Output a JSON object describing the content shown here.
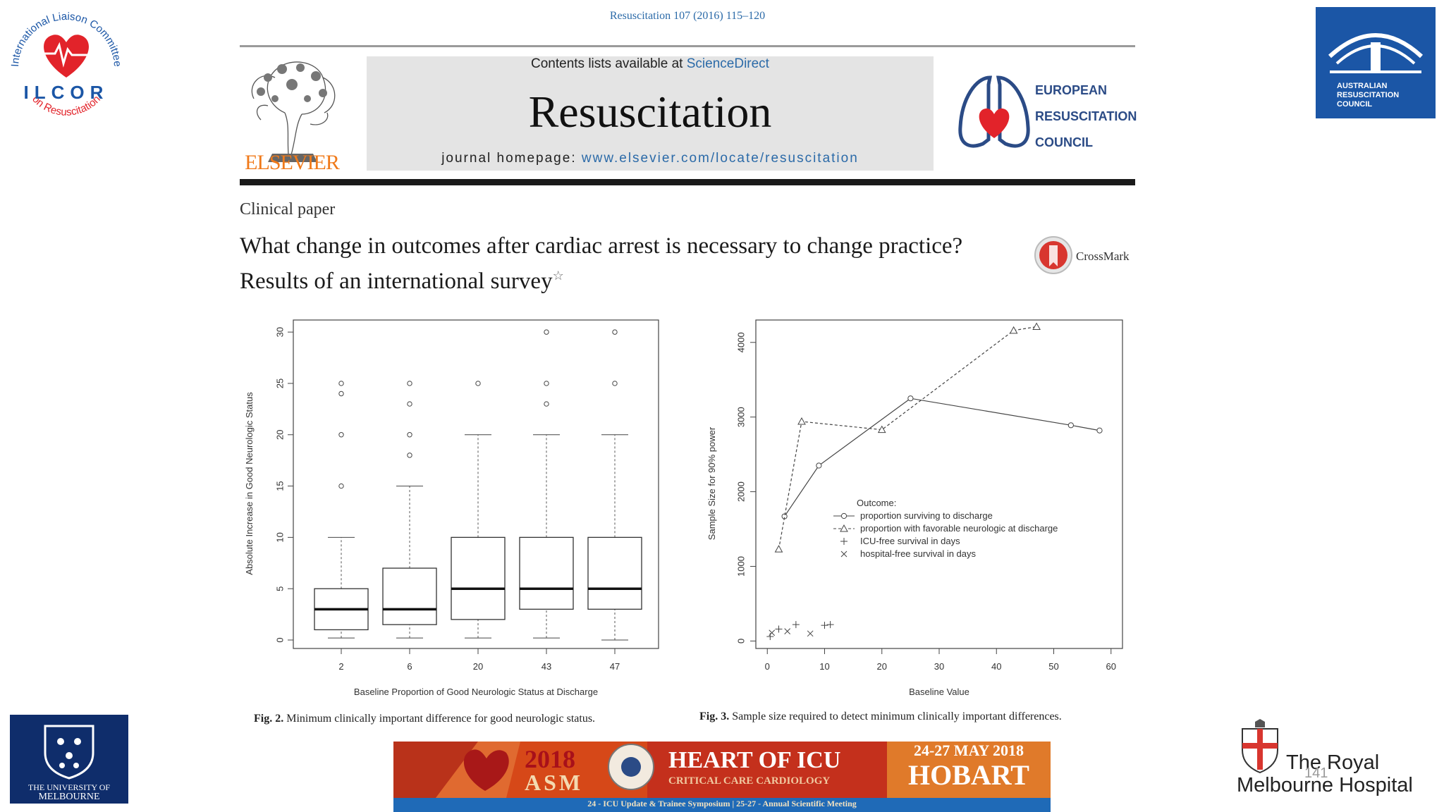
{
  "journal": {
    "citation": "Resuscitation 107 (2016) 115–120",
    "contents_prefix": "Contents lists available at ",
    "contents_link": "ScienceDirect",
    "title": "Resuscitation",
    "homepage_prefix": "journal homepage: ",
    "homepage_link": "www.elsevier.com/locate/resuscitation",
    "publisher": "ELSEVIER",
    "council_lines": [
      "EUROPEAN",
      "RESUSCITATION",
      "COUNCIL"
    ]
  },
  "paper": {
    "type": "Clinical paper",
    "title": "What change in outcomes after cardiac arrest is necessary to change practice? Results of an international survey",
    "title_mark": "☆",
    "crossmark_label": "CrossMark"
  },
  "figures": {
    "fig2": {
      "caption_label": "Fig. 2.",
      "caption_text": "Minimum clinically important difference for good neurologic status."
    },
    "fig3": {
      "caption_label": "Fig. 3.",
      "caption_text": "Sample size required to detect minimum clinically important differences."
    }
  },
  "chart_data": [
    {
      "type": "box",
      "title": "",
      "xlabel": "Baseline Proportion of Good Neurologic Status at Discharge",
      "ylabel": "Absolute Increase in Good Neurologic Status",
      "categories": [
        "2",
        "6",
        "20",
        "43",
        "47"
      ],
      "ylim": [
        0,
        32
      ],
      "yticks": [
        0,
        5,
        10,
        15,
        20,
        25,
        30
      ],
      "boxes": [
        {
          "whisker_low": 0.2,
          "q1": 1,
          "median": 3,
          "q3": 5,
          "whisker_high": 10,
          "outliers": [
            15,
            20,
            24,
            25
          ]
        },
        {
          "whisker_low": 0.2,
          "q1": 1.5,
          "median": 3,
          "q3": 7,
          "whisker_high": 15,
          "outliers": [
            18,
            20,
            23,
            25
          ]
        },
        {
          "whisker_low": 0.2,
          "q1": 2,
          "median": 5,
          "q3": 10,
          "whisker_high": 20,
          "outliers": [
            25
          ]
        },
        {
          "whisker_low": 0.2,
          "q1": 3,
          "median": 5,
          "q3": 10,
          "whisker_high": 20,
          "outliers": [
            23,
            25,
            30
          ]
        },
        {
          "whisker_low": 0,
          "q1": 3,
          "median": 5,
          "q3": 10,
          "whisker_high": 20,
          "outliers": [
            25,
            30
          ]
        }
      ]
    },
    {
      "type": "line",
      "xlabel": "Baseline Value",
      "ylabel": "Sample Size for 90% power",
      "xlim": [
        -2,
        62
      ],
      "ylim": [
        -100,
        4300
      ],
      "xticks": [
        0,
        10,
        20,
        30,
        40,
        50,
        60
      ],
      "yticks": [
        0,
        1000,
        2000,
        3000,
        4000
      ],
      "legend_title": "Outcome:",
      "series": [
        {
          "name": "proportion surviving to discharge",
          "marker": "circle",
          "dash": "solid",
          "x": [
            3,
            9,
            25,
            53,
            58
          ],
          "y": [
            1670,
            2350,
            3250,
            2890,
            2820
          ]
        },
        {
          "name": "proportion with favorable neurologic at discharge",
          "marker": "triangle",
          "dash": "dashed",
          "x": [
            2,
            6,
            20,
            43,
            47
          ],
          "y": [
            1230,
            2940,
            2830,
            4160,
            4210
          ]
        },
        {
          "name": "ICU-free survival in days",
          "marker": "plus",
          "dash": "none",
          "x": [
            0.5,
            2,
            5,
            10,
            11
          ],
          "y": [
            60,
            160,
            220,
            210,
            220
          ]
        },
        {
          "name": "hospital-free survival in days",
          "marker": "cross",
          "dash": "none",
          "x": [
            0.8,
            3.5,
            7.5
          ],
          "y": [
            110,
            130,
            100
          ]
        }
      ]
    }
  ],
  "logos": {
    "ilcor_ring_top": "International Liaison Committee",
    "ilcor_letters": "ILCOR",
    "ilcor_ring_bottom": "on Resuscitation",
    "arc_lines": [
      "AUSTRALIAN",
      "RESUSCITATION",
      "COUNCIL"
    ],
    "uom_lines": [
      "THE UNIVERSITY OF",
      "MELBOURNE"
    ],
    "rmh_lines": [
      "The Royal",
      "Melbourne Hospital"
    ]
  },
  "banner": {
    "year": "2018",
    "asm": "ASM",
    "heading": "HEART OF ICU",
    "subheading": "CRITICAL CARE CARDIOLOGY",
    "date": "24-27 MAY 2018",
    "city": "HOBART",
    "footer": "24 - ICU Update & Trainee Symposium | 25-27 - Annual Scientific Meeting"
  },
  "slide_number": "141",
  "colors": {
    "link": "#2b6aa8",
    "elsevier_orange": "#f07a1a",
    "council_blue": "#2b4b86",
    "heart_red": "#e2232a"
  }
}
